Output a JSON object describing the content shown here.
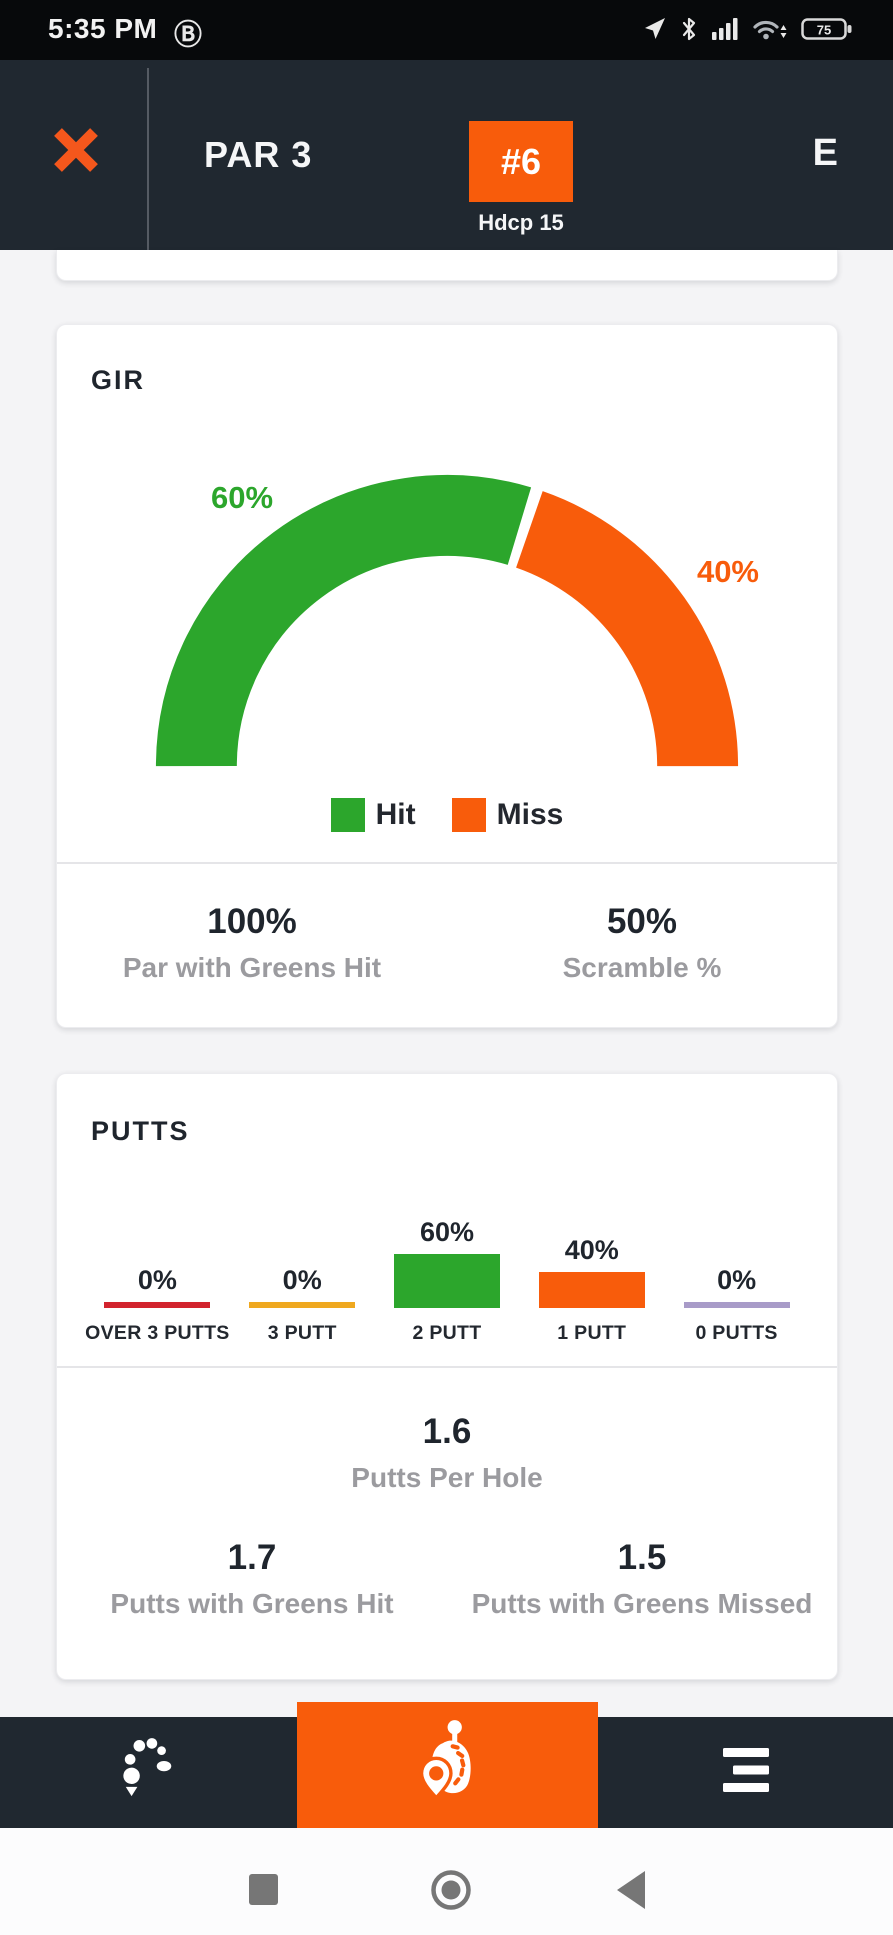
{
  "colors": {
    "brand_orange": "#F85C0B",
    "green": "#2CA62C",
    "header_dark": "#202830",
    "page_bg": "#F4F4F6",
    "heading_text": "#1F252D",
    "muted_text": "#9B9B9F",
    "bar_red": "#D2232E",
    "bar_amber": "#EFA81F",
    "bar_purple": "#A89BC8"
  },
  "status_bar": {
    "time": "5:35 PM",
    "profile_badge": "Ⓑ",
    "battery_level": "75",
    "icons": [
      "location-arrow",
      "bluetooth",
      "cell-signal",
      "wifi",
      "battery"
    ]
  },
  "header": {
    "icons": [
      "close-icon"
    ],
    "par_label": "PAR 3",
    "hole_number": "#6",
    "handicap": "Hdcp 15",
    "score": "E"
  },
  "gir_card": {
    "title": "GIR",
    "legend": [
      {
        "label": "Hit",
        "color": "#2CA62C"
      },
      {
        "label": "Miss",
        "color": "#F85C0B"
      }
    ],
    "stats": [
      {
        "value": "100%",
        "label": "Par with Greens Hit"
      },
      {
        "value": "50%",
        "label": "Scramble %"
      }
    ]
  },
  "putts_card": {
    "title": "PUTTS",
    "primary_stat": {
      "value": "1.6",
      "label": "Putts Per Hole"
    },
    "stats": [
      {
        "value": "1.7",
        "label": "Putts with Greens Hit"
      },
      {
        "value": "1.5",
        "label": "Putts with Greens Missed"
      }
    ]
  },
  "chart_data": [
    {
      "type": "pie",
      "variant": "semicircle-donut",
      "title": "GIR",
      "series": [
        {
          "name": "Hit",
          "value": 60,
          "label": "60%",
          "color": "#2CA62C"
        },
        {
          "name": "Miss",
          "value": 40,
          "label": "40%",
          "color": "#F85C0B"
        }
      ],
      "legend_position": "bottom"
    },
    {
      "type": "bar",
      "title": "PUTTS",
      "categories": [
        "OVER 3 PUTTS",
        "3 PUTT",
        "2 PUTT",
        "1 PUTT",
        "0 PUTTS"
      ],
      "values": [
        0,
        0,
        60,
        40,
        0
      ],
      "value_labels": [
        "0%",
        "0%",
        "60%",
        "40%",
        "0%"
      ],
      "colors": [
        "#D2232E",
        "#EFA81F",
        "#2CA62C",
        "#F85C0B",
        "#A89BC8"
      ],
      "ylim": [
        0,
        60
      ],
      "grid": false
    }
  ],
  "bottom_nav": {
    "items": [
      {
        "name": "shot-trajectory",
        "active": false
      },
      {
        "name": "hole-view",
        "active": true
      },
      {
        "name": "menu",
        "active": false
      }
    ]
  },
  "android_nav": {
    "buttons": [
      "recents",
      "home",
      "back"
    ]
  }
}
